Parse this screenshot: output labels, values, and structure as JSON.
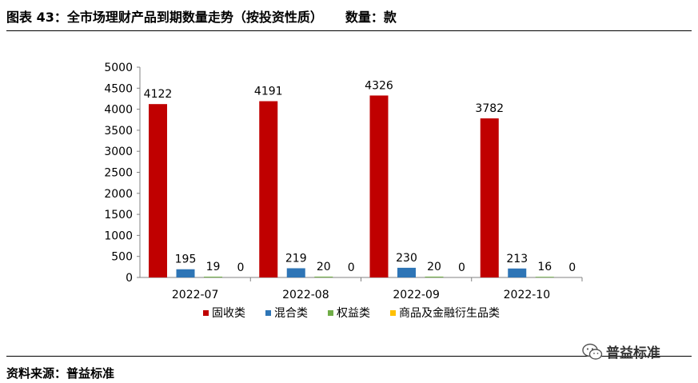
{
  "header": {
    "title": "图表 43：全市场理财产品到期数量走势（按投资性质）",
    "unit": "数量：款"
  },
  "footer": {
    "source": "资料来源：普益标准",
    "watermark": "普益标准"
  },
  "chart_data": {
    "type": "bar",
    "categories": [
      "2022-07",
      "2022-08",
      "2022-09",
      "2022-10"
    ],
    "series": [
      {
        "name": "固收类",
        "color": "#C00000",
        "values": [
          4122,
          4191,
          4326,
          3782
        ]
      },
      {
        "name": "混合类",
        "color": "#2E75B6",
        "values": [
          195,
          219,
          230,
          213
        ]
      },
      {
        "name": "权益类",
        "color": "#70AD47",
        "values": [
          19,
          20,
          20,
          16
        ]
      },
      {
        "name": "商品及金融衍生品类",
        "color": "#FFC000",
        "values": [
          0,
          0,
          0,
          0
        ]
      }
    ],
    "ylim": [
      0,
      5000
    ],
    "yticks": [
      0,
      500,
      1000,
      1500,
      2000,
      2500,
      3000,
      3500,
      4000,
      4500,
      5000
    ],
    "legend_position": "bottom",
    "grid": false
  }
}
